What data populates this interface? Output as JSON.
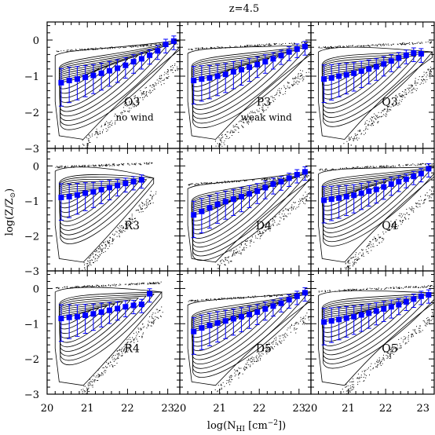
{
  "figure": {
    "title": "z=4.5",
    "xlabel_prefix": "log(N",
    "xlabel_sub": "HI",
    "xlabel_suffix": " [cm",
    "xlabel_sup": "−2",
    "xlabel_end": "])",
    "ylabel_prefix": "log(Z/Z",
    "ylabel_sub": "⊙",
    "ylabel_end": ")",
    "x_ticks": [
      "20",
      "21",
      "22",
      "23"
    ],
    "y_ticks": [
      "0",
      "−1",
      "−2",
      "−3"
    ]
  },
  "colors": {
    "series": "#0000ff",
    "contours": "#000000",
    "background": "#ffffff"
  },
  "chart_data": [
    {
      "type": "scatter",
      "panel": "O3",
      "label": "O3",
      "sublabel": "no wind",
      "xlim": [
        20,
        23.3
      ],
      "ylim": [
        -3,
        0.5
      ],
      "x": [
        20.35,
        20.55,
        20.75,
        20.95,
        21.15,
        21.35,
        21.55,
        21.75,
        21.95,
        22.15,
        22.35,
        22.55,
        22.75,
        22.95,
        23.15
      ],
      "y": [
        -1.18,
        -1.12,
        -1.08,
        -1.03,
        -0.98,
        -0.92,
        -0.85,
        -0.78,
        -0.7,
        -0.6,
        -0.52,
        -0.42,
        -0.3,
        -0.12,
        -0.03
      ]
    },
    {
      "type": "scatter",
      "panel": "P3",
      "label": "P3",
      "sublabel": "weak wind",
      "xlim": [
        20,
        23.3
      ],
      "ylim": [
        -3,
        0.5
      ],
      "x": [
        20.35,
        20.55,
        20.75,
        20.95,
        21.15,
        21.35,
        21.55,
        21.75,
        21.95,
        22.15,
        22.35,
        22.55,
        22.75,
        22.95,
        23.15
      ],
      "y": [
        -1.12,
        -1.08,
        -1.05,
        -1.0,
        -0.95,
        -0.88,
        -0.82,
        -0.75,
        -0.68,
        -0.6,
        -0.52,
        -0.43,
        -0.33,
        -0.25,
        -0.18
      ]
    },
    {
      "type": "scatter",
      "panel": "Q3",
      "label": "Q3",
      "sublabel": "",
      "xlim": [
        20,
        23.3
      ],
      "ylim": [
        -3,
        0.5
      ],
      "x": [
        20.35,
        20.55,
        20.75,
        20.95,
        21.15,
        21.35,
        21.55,
        21.75,
        21.95,
        22.15,
        22.35,
        22.55,
        22.75,
        22.95
      ],
      "y": [
        -1.08,
        -1.05,
        -1.0,
        -0.96,
        -0.92,
        -0.86,
        -0.8,
        -0.74,
        -0.66,
        -0.58,
        -0.5,
        -0.42,
        -0.36,
        -0.38
      ]
    },
    {
      "type": "scatter",
      "panel": "R3",
      "label": "R3",
      "sublabel": "",
      "xlim": [
        20,
        23.3
      ],
      "ylim": [
        -3,
        0.5
      ],
      "x": [
        20.35,
        20.55,
        20.75,
        20.95,
        21.15,
        21.35,
        21.55,
        21.75,
        21.95,
        22.15,
        22.35
      ],
      "y": [
        -0.9,
        -0.88,
        -0.83,
        -0.78,
        -0.74,
        -0.68,
        -0.62,
        -0.56,
        -0.5,
        -0.45,
        -0.4
      ]
    },
    {
      "type": "scatter",
      "panel": "D4",
      "label": "D4",
      "sublabel": "",
      "xlim": [
        20,
        23.3
      ],
      "ylim": [
        -3,
        0.5
      ],
      "x": [
        20.35,
        20.55,
        20.75,
        20.95,
        21.15,
        21.35,
        21.55,
        21.75,
        21.95,
        22.15,
        22.35,
        22.55,
        22.75,
        22.95,
        23.15
      ],
      "y": [
        -1.4,
        -1.3,
        -1.2,
        -1.1,
        -1.02,
        -0.95,
        -0.88,
        -0.8,
        -0.72,
        -0.62,
        -0.52,
        -0.45,
        -0.35,
        -0.25,
        -0.17
      ]
    },
    {
      "type": "scatter",
      "panel": "Q4",
      "label": "Q4",
      "sublabel": "",
      "xlim": [
        20,
        23.3
      ],
      "ylim": [
        -3,
        0.5
      ],
      "x": [
        20.35,
        20.55,
        20.75,
        20.95,
        21.15,
        21.35,
        21.55,
        21.75,
        21.95,
        22.15,
        22.35,
        22.55,
        22.75,
        22.95,
        23.15
      ],
      "y": [
        -0.98,
        -0.95,
        -0.92,
        -0.88,
        -0.84,
        -0.78,
        -0.72,
        -0.67,
        -0.6,
        -0.52,
        -0.45,
        -0.38,
        -0.3,
        -0.22,
        -0.08
      ]
    },
    {
      "type": "scatter",
      "panel": "R4",
      "label": "R4",
      "sublabel": "",
      "xlim": [
        20,
        23.3
      ],
      "ylim": [
        -3,
        0.5
      ],
      "x": [
        20.35,
        20.55,
        20.75,
        20.95,
        21.15,
        21.35,
        21.55,
        21.75,
        21.95,
        22.15,
        22.35,
        22.55
      ],
      "y": [
        -0.85,
        -0.82,
        -0.8,
        -0.76,
        -0.72,
        -0.67,
        -0.62,
        -0.57,
        -0.52,
        -0.48,
        -0.45,
        -0.15
      ]
    },
    {
      "type": "scatter",
      "panel": "D5",
      "label": "D5",
      "sublabel": "",
      "xlim": [
        20,
        23.3
      ],
      "ylim": [
        -3,
        0.5
      ],
      "x": [
        20.35,
        20.55,
        20.75,
        20.95,
        21.15,
        21.35,
        21.55,
        21.75,
        21.95,
        22.15,
        22.35,
        22.55,
        22.75,
        22.95,
        23.15
      ],
      "y": [
        -1.22,
        -1.12,
        -1.05,
        -0.98,
        -0.92,
        -0.86,
        -0.8,
        -0.74,
        -0.67,
        -0.58,
        -0.5,
        -0.42,
        -0.32,
        -0.22,
        -0.12
      ]
    },
    {
      "type": "scatter",
      "panel": "Q5",
      "label": "Q5",
      "sublabel": "",
      "xlim": [
        20,
        23.3
      ],
      "ylim": [
        -3,
        0.5
      ],
      "x": [
        20.35,
        20.55,
        20.75,
        20.95,
        21.15,
        21.35,
        21.55,
        21.75,
        21.95,
        22.15,
        22.35,
        22.55,
        22.75,
        22.95,
        23.15
      ],
      "y": [
        -0.95,
        -0.92,
        -0.88,
        -0.84,
        -0.8,
        -0.75,
        -0.7,
        -0.64,
        -0.58,
        -0.52,
        -0.46,
        -0.38,
        -0.3,
        -0.22,
        -0.18
      ]
    }
  ]
}
